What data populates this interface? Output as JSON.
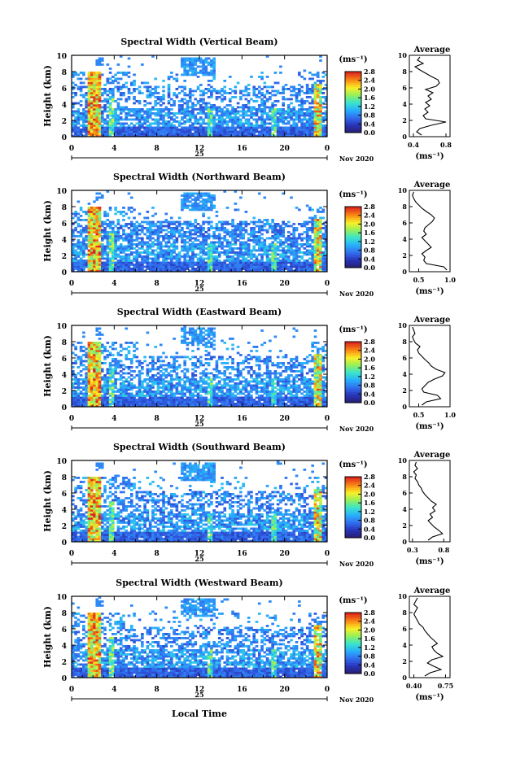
{
  "chart_data": [
    {
      "type": "heatmap",
      "title": "Spectral Width (Vertical Beam)",
      "ylabel": "Height (km)",
      "ylim": [
        0,
        10
      ],
      "yticks": [
        "0",
        "2",
        "4",
        "6",
        "8",
        "10"
      ],
      "xticks": [
        "0",
        "4",
        "8",
        "12",
        "16",
        "20",
        "0"
      ],
      "day_label": "25",
      "date_label": "Nov 2020",
      "colorbar": {
        "unit": "(ms⁻¹)",
        "ticks": [
          "0.0",
          "0.4",
          "0.8",
          "1.2",
          "1.6",
          "2.0",
          "2.4",
          "2.8"
        ],
        "range": [
          0,
          2.8
        ]
      },
      "average": {
        "title": "Average",
        "xlabel": "(ms⁻¹)",
        "xticks": [
          "0.4",
          "0.8"
        ],
        "xlim": [
          0.35,
          0.85
        ],
        "heights": [
          0.2,
          0.6,
          1.0,
          1.4,
          1.8,
          2.2,
          2.6,
          3.0,
          3.4,
          3.8,
          4.2,
          4.6,
          5.0,
          5.4,
          5.8,
          6.2,
          6.6,
          7.0,
          7.4,
          7.8,
          8.2,
          8.6,
          9.0,
          9.4,
          9.8
        ],
        "values": [
          0.5,
          0.44,
          0.48,
          0.62,
          0.8,
          0.55,
          0.52,
          0.58,
          0.54,
          0.6,
          0.55,
          0.62,
          0.58,
          0.64,
          0.55,
          0.68,
          0.72,
          0.7,
          0.62,
          0.55,
          0.48,
          0.42,
          0.52,
          0.45,
          0.48
        ]
      }
    },
    {
      "type": "heatmap",
      "title": "Spectral Width (Northward Beam)",
      "ylabel": "Height (km)",
      "ylim": [
        0,
        10
      ],
      "yticks": [
        "0",
        "2",
        "4",
        "6",
        "8",
        "10"
      ],
      "xticks": [
        "0",
        "4",
        "8",
        "12",
        "16",
        "20",
        "0"
      ],
      "day_label": "25",
      "date_label": "Nov 2020",
      "colorbar": {
        "unit": "(ms⁻¹)",
        "ticks": [
          "0.0",
          "0.4",
          "0.8",
          "1.2",
          "1.6",
          "2.0",
          "2.4",
          "2.8"
        ],
        "range": [
          0,
          2.8
        ]
      },
      "average": {
        "title": "Average",
        "xlabel": "(ms⁻¹)",
        "xticks": [
          "0.5",
          "1.0"
        ],
        "xlim": [
          0.35,
          1.0
        ],
        "heights": [
          0.2,
          0.6,
          1.0,
          1.4,
          1.8,
          2.2,
          2.6,
          3.0,
          3.4,
          3.8,
          4.2,
          4.6,
          5.0,
          5.4,
          5.8,
          6.2,
          6.6,
          7.0,
          7.4,
          7.8,
          8.2,
          8.6,
          9.0,
          9.4,
          9.8
        ],
        "values": [
          0.95,
          0.9,
          0.62,
          0.58,
          0.6,
          0.55,
          0.62,
          0.7,
          0.65,
          0.6,
          0.55,
          0.62,
          0.58,
          0.6,
          0.66,
          0.72,
          0.75,
          0.7,
          0.62,
          0.55,
          0.5,
          0.45,
          0.42,
          0.4,
          0.42
        ]
      }
    },
    {
      "type": "heatmap",
      "title": "Spectral Width (Eastward Beam)",
      "ylabel": "Height (km)",
      "ylim": [
        0,
        10
      ],
      "yticks": [
        "0",
        "2",
        "4",
        "6",
        "8",
        "10"
      ],
      "xticks": [
        "0",
        "4",
        "8",
        "12",
        "16",
        "20",
        "0"
      ],
      "day_label": "25",
      "date_label": "Nov 2020",
      "colorbar": {
        "unit": "(ms⁻¹)",
        "ticks": [
          "0.0",
          "0.4",
          "0.8",
          "1.2",
          "1.6",
          "2.0",
          "2.4",
          "2.8"
        ],
        "range": [
          0,
          2.8
        ]
      },
      "average": {
        "title": "Average",
        "xlabel": "(ms⁻¹)",
        "xticks": [
          "0.5",
          "1.0"
        ],
        "xlim": [
          0.35,
          1.0
        ],
        "heights": [
          0.2,
          0.6,
          1.0,
          1.4,
          1.8,
          2.2,
          2.6,
          3.0,
          3.4,
          3.8,
          4.2,
          4.6,
          5.0,
          5.4,
          5.8,
          6.2,
          6.6,
          7.0,
          7.4,
          7.8,
          8.2,
          8.6,
          9.0,
          9.4,
          9.8
        ],
        "values": [
          0.55,
          0.62,
          0.85,
          0.8,
          0.58,
          0.55,
          0.6,
          0.65,
          0.75,
          0.88,
          0.92,
          0.78,
          0.7,
          0.66,
          0.6,
          0.55,
          0.5,
          0.48,
          0.52,
          0.45,
          0.42,
          0.4,
          0.44,
          0.42,
          0.4
        ]
      }
    },
    {
      "type": "heatmap",
      "title": "Spectral Width (Southward Beam)",
      "ylabel": "Height (km)",
      "ylim": [
        0,
        10
      ],
      "yticks": [
        "0",
        "2",
        "4",
        "6",
        "8",
        "10"
      ],
      "xticks": [
        "0",
        "4",
        "8",
        "12",
        "16",
        "20",
        "0"
      ],
      "day_label": "25",
      "date_label": "Nov 2020",
      "colorbar": {
        "unit": "(ms⁻¹)",
        "ticks": [
          "0.0",
          "0.4",
          "0.8",
          "1.2",
          "1.6",
          "2.0",
          "2.4",
          "2.8"
        ],
        "range": [
          0,
          2.8
        ]
      },
      "average": {
        "title": "Average",
        "xlabel": "(ms⁻¹)",
        "xticks": [
          "0.3",
          "0.8"
        ],
        "xlim": [
          0.25,
          0.9
        ],
        "heights": [
          0.2,
          0.6,
          1.0,
          1.4,
          1.8,
          2.2,
          2.6,
          3.0,
          3.4,
          3.8,
          4.2,
          4.6,
          5.0,
          5.4,
          5.8,
          6.2,
          6.6,
          7.0,
          7.4,
          7.8,
          8.2,
          8.6,
          9.0,
          9.4,
          9.8
        ],
        "values": [
          0.55,
          0.62,
          0.78,
          0.72,
          0.65,
          0.6,
          0.55,
          0.62,
          0.58,
          0.66,
          0.62,
          0.68,
          0.6,
          0.55,
          0.5,
          0.46,
          0.44,
          0.4,
          0.38,
          0.34,
          0.36,
          0.32,
          0.38,
          0.34,
          0.36
        ]
      }
    },
    {
      "type": "heatmap",
      "title": "Spectral Width (Westward Beam)",
      "ylabel": "Height (km)",
      "xlabel": "Local Time",
      "ylim": [
        0,
        10
      ],
      "yticks": [
        "0",
        "2",
        "4",
        "6",
        "8",
        "10"
      ],
      "xticks": [
        "0",
        "4",
        "8",
        "12",
        "16",
        "20",
        "0"
      ],
      "day_label": "25",
      "date_label": "Nov 2020",
      "colorbar": {
        "unit": "(ms⁻¹)",
        "ticks": [
          "0.0",
          "0.4",
          "0.8",
          "1.2",
          "1.6",
          "2.0",
          "2.4",
          "2.8"
        ],
        "range": [
          0,
          2.8
        ]
      },
      "average": {
        "title": "Average",
        "xlabel": "(ms⁻¹)",
        "xticks": [
          "0.40",
          "0.75"
        ],
        "xlim": [
          0.35,
          0.8
        ],
        "heights": [
          0.2,
          0.6,
          1.0,
          1.4,
          1.8,
          2.2,
          2.6,
          3.0,
          3.4,
          3.8,
          4.2,
          4.6,
          5.0,
          5.4,
          5.8,
          6.2,
          6.6,
          7.0,
          7.4,
          7.8,
          8.2,
          8.6,
          9.0,
          9.4,
          9.8
        ],
        "values": [
          0.52,
          0.58,
          0.7,
          0.62,
          0.55,
          0.6,
          0.72,
          0.66,
          0.62,
          0.6,
          0.66,
          0.62,
          0.58,
          0.55,
          0.52,
          0.5,
          0.46,
          0.44,
          0.42,
          0.4,
          0.42,
          0.44,
          0.4,
          0.42,
          0.44
        ]
      }
    }
  ]
}
